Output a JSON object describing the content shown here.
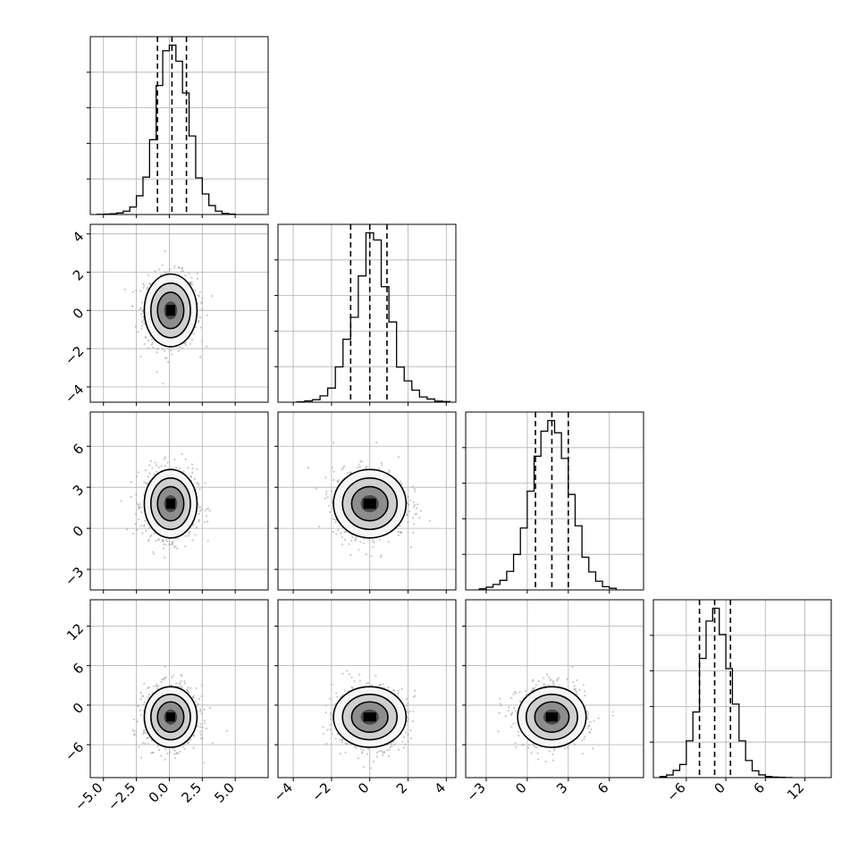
{
  "chart_data": {
    "type": "corner",
    "grid": true,
    "histogram_style": "step, black",
    "quantile_line_style": "dashed, black",
    "parameters": [
      {
        "index": 0,
        "range": [
          -6.0,
          7.5
        ],
        "ticks": [
          -5.0,
          -2.5,
          0.0,
          2.5,
          5.0
        ],
        "tick_labels": [
          "−5.0",
          "−2.5",
          "0.0",
          "2.5",
          "5.0"
        ],
        "quantiles": [
          -0.9,
          0.2,
          1.3
        ],
        "hist": {
          "edges": [
            -5.5,
            -5.0,
            -4.5,
            -4.0,
            -3.5,
            -3.0,
            -2.5,
            -2.0,
            -1.5,
            -1.0,
            -0.5,
            0.0,
            0.5,
            1.0,
            1.5,
            2.0,
            2.5,
            3.0,
            3.5,
            4.0,
            4.5,
            5.0
          ],
          "counts": [
            0.5,
            1,
            2,
            4,
            9,
            20,
            50,
            100,
            200,
            345,
            438,
            453,
            410,
            325,
            210,
            98,
            55,
            24,
            9,
            3,
            1
          ]
        }
      },
      {
        "index": 1,
        "range": [
          -4.8,
          4.5
        ],
        "ticks": [
          -4,
          -2,
          0,
          2,
          4
        ],
        "tick_labels": [
          "−4",
          "−2",
          "0",
          "2",
          "4"
        ],
        "quantiles": [
          -1.0,
          0.0,
          0.9
        ],
        "hist": {
          "edges": [
            -3.8,
            -3.4,
            -3.0,
            -2.6,
            -2.2,
            -1.8,
            -1.4,
            -1.0,
            -0.6,
            -0.2,
            0.2,
            0.6,
            1.0,
            1.4,
            1.8,
            2.2,
            2.6,
            3.0,
            3.4,
            3.8,
            4.2
          ],
          "counts": [
            2,
            6,
            12,
            30,
            67,
            167,
            298,
            402,
            598,
            802,
            768,
            547,
            380,
            166,
            101,
            57,
            25,
            15,
            5,
            3
          ]
        }
      },
      {
        "index": 2,
        "range": [
          -4.5,
          8.5
        ],
        "ticks": [
          -3,
          0,
          3,
          6
        ],
        "tick_labels": [
          "−3",
          "0",
          "3",
          "6"
        ],
        "quantiles": [
          0.6,
          1.8,
          3.0
        ],
        "hist": {
          "edges": [
            -3.5,
            -3.0,
            -2.5,
            -2.0,
            -1.5,
            -1.0,
            -0.5,
            0.0,
            0.5,
            1.0,
            1.5,
            2.0,
            2.5,
            3.0,
            3.5,
            4.0,
            4.5,
            5.0,
            5.5,
            6.0,
            6.5
          ],
          "counts": [
            4,
            10,
            20,
            35,
            68,
            130,
            227,
            362,
            490,
            582,
            621,
            576,
            482,
            350,
            235,
            120,
            66,
            32,
            12,
            6
          ]
        }
      },
      {
        "index": 3,
        "range": [
          -11,
          16
        ],
        "ticks": [
          -6,
          0,
          6,
          12
        ],
        "tick_labels": [
          "−6",
          "0",
          "6",
          "12"
        ],
        "quantiles": [
          -4.0,
          -1.7,
          0.7
        ],
        "hist": {
          "edges": [
            -10.0,
            -9.0,
            -8.0,
            -7.0,
            -6.0,
            -5.0,
            -4.0,
            -3.0,
            -2.0,
            -1.0,
            0.0,
            1.0,
            2.0,
            3.0,
            4.0,
            5.0,
            6.0,
            7.0,
            8.0,
            9.0,
            10.0
          ],
          "counts": [
            8,
            20,
            55,
            100,
            280,
            500,
            908,
            1192,
            1290,
            1090,
            830,
            560,
            280,
            130,
            52,
            21,
            8,
            4,
            2,
            1
          ]
        }
      }
    ],
    "pairs": [
      {
        "x_param": 0,
        "y_param": 1,
        "center": [
          0.1,
          0.0
        ],
        "spread": [
          1.0,
          0.95
        ]
      },
      {
        "x_param": 0,
        "y_param": 2,
        "center": [
          0.1,
          1.8
        ],
        "spread": [
          1.0,
          1.25
        ]
      },
      {
        "x_param": 1,
        "y_param": 2,
        "center": [
          0.0,
          1.8
        ],
        "spread": [
          0.95,
          1.25
        ]
      },
      {
        "x_param": 0,
        "y_param": 3,
        "center": [
          0.1,
          -1.8
        ],
        "spread": [
          1.0,
          2.3
        ]
      },
      {
        "x_param": 1,
        "y_param": 3,
        "center": [
          0.0,
          -1.8
        ],
        "spread": [
          0.95,
          2.3
        ]
      },
      {
        "x_param": 2,
        "y_param": 3,
        "center": [
          1.8,
          -1.8
        ],
        "spread": [
          1.25,
          2.3
        ]
      }
    ],
    "contour_levels_sigma": [
      0.5,
      1.0,
      1.5,
      2.0
    ]
  }
}
